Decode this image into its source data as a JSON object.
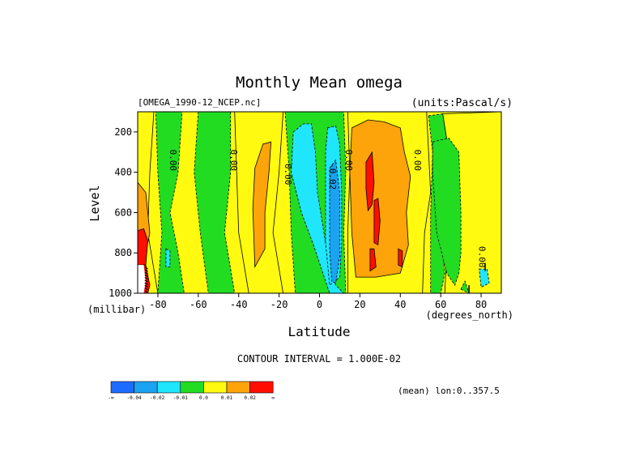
{
  "chart_data": {
    "type": "contour",
    "title": "Monthly Mean omega",
    "dataset": "[OMEGA_1990-12_NCEP.nc]",
    "units": "(units:Pascal/s)",
    "xlabel": "Latitude",
    "ylabel": "Level",
    "xunits": "(degrees_north)",
    "yunits": "(millibar)",
    "xlim": [
      -90,
      90
    ],
    "ylim": [
      1000,
      100
    ],
    "xticks": [
      "-80",
      "-60",
      "-40",
      "-20",
      "0",
      "20",
      "40",
      "60",
      "80"
    ],
    "yticks": [
      "200",
      "400",
      "600",
      "800",
      "1000"
    ],
    "contour_interval": "CONTOUR INTERVAL = 1.000E-02",
    "averaging": "(mean) lon:0..357.5",
    "contour_labels": [
      {
        "text": "0.00",
        "lat": -74,
        "lev": 340
      },
      {
        "text": "0.00",
        "lat": -44,
        "lev": 340
      },
      {
        "text": "0.00",
        "lat": -17,
        "lev": 410
      },
      {
        "text": "0.00",
        "lat": 13,
        "lev": 340
      },
      {
        "text": "-0.02",
        "lat": 5,
        "lev": 420
      },
      {
        "text": "0.00",
        "lat": 47,
        "lev": 340
      },
      {
        "text": "0.00",
        "lat": 79,
        "lev": 820
      }
    ],
    "regions": [
      {
        "level": 0.005,
        "points": [
          [
            -90,
            100
          ],
          [
            -82,
            100
          ],
          [
            -84,
            400
          ],
          [
            -85,
            700
          ],
          [
            -80,
            1000
          ],
          [
            -90,
            1000
          ]
        ]
      },
      {
        "level": 0.015,
        "points": [
          [
            -90,
            450
          ],
          [
            -86,
            500
          ],
          [
            -84,
            700
          ],
          [
            -86,
            800
          ],
          [
            -90,
            850
          ]
        ]
      },
      {
        "level": 0.025,
        "points": [
          [
            -90,
            690
          ],
          [
            -87,
            680
          ],
          [
            -85,
            740
          ],
          [
            -86,
            860
          ],
          [
            -90,
            860
          ]
        ]
      },
      {
        "level": 0.025,
        "points": [
          [
            -88,
            860
          ],
          [
            -86,
            860
          ],
          [
            -84,
            960
          ],
          [
            -85,
            1000
          ],
          [
            -88,
            1000
          ]
        ]
      },
      {
        "level": -0.005,
        "points": [
          [
            -81,
            100
          ],
          [
            -68,
            100
          ],
          [
            -70,
            400
          ],
          [
            -74,
            600
          ],
          [
            -70,
            800
          ],
          [
            -67,
            1000
          ],
          [
            -80,
            1000
          ],
          [
            -78,
            700
          ],
          [
            -80,
            400
          ]
        ]
      },
      {
        "level": -0.015,
        "points": [
          [
            -76,
            780
          ],
          [
            -74,
            790
          ],
          [
            -74,
            870
          ],
          [
            -76,
            870
          ]
        ]
      },
      {
        "level": -0.005,
        "points": [
          [
            -60,
            100
          ],
          [
            -44,
            100
          ],
          [
            -44,
            400
          ],
          [
            -47,
            700
          ],
          [
            -42,
            1000
          ],
          [
            -55,
            1000
          ],
          [
            -59,
            700
          ],
          [
            -62,
            400
          ]
        ]
      },
      {
        "level": 0.005,
        "points": [
          [
            -42,
            100
          ],
          [
            -18,
            100
          ],
          [
            -20,
            400
          ],
          [
            -23,
            700
          ],
          [
            -18,
            1000
          ],
          [
            -35,
            1000
          ],
          [
            -40,
            700
          ],
          [
            -41,
            400
          ]
        ]
      },
      {
        "level": 0.015,
        "points": [
          [
            -33,
            580
          ],
          [
            -32,
            380
          ],
          [
            -28,
            260
          ],
          [
            -24,
            250
          ],
          [
            -25,
            400
          ],
          [
            -27,
            600
          ],
          [
            -27,
            780
          ],
          [
            -32,
            870
          ]
        ]
      },
      {
        "level": -0.005,
        "points": [
          [
            -17,
            100
          ],
          [
            12,
            100
          ],
          [
            13,
            400
          ],
          [
            12,
            700
          ],
          [
            13,
            1000
          ],
          [
            -12,
            1000
          ],
          [
            -14,
            700
          ],
          [
            -15,
            400
          ]
        ]
      },
      {
        "level": -0.015,
        "points": [
          [
            -13,
            200
          ],
          [
            -8,
            160
          ],
          [
            -4,
            160
          ],
          [
            -2,
            300
          ],
          [
            -1,
            500
          ],
          [
            3,
            750
          ],
          [
            8,
            960
          ],
          [
            12,
            1000
          ],
          [
            5,
            1000
          ],
          [
            -3,
            760
          ],
          [
            -9,
            600
          ],
          [
            -14,
            400
          ]
        ]
      },
      {
        "level": -0.015,
        "points": [
          [
            4,
            180
          ],
          [
            8,
            170
          ],
          [
            10,
            260
          ],
          [
            11,
            500
          ],
          [
            11,
            750
          ],
          [
            10,
            920
          ],
          [
            5,
            960
          ],
          [
            3,
            750
          ],
          [
            3,
            500
          ],
          [
            3,
            300
          ]
        ]
      },
      {
        "level": -0.025,
        "points": [
          [
            5,
            380
          ],
          [
            8,
            340
          ],
          [
            10,
            500
          ],
          [
            10,
            820
          ],
          [
            8,
            950
          ],
          [
            6,
            940
          ],
          [
            5,
            780
          ],
          [
            5,
            560
          ]
        ]
      },
      {
        "level": 0.005,
        "points": [
          [
            14,
            100
          ],
          [
            53,
            100
          ],
          [
            54,
            300
          ],
          [
            55,
            500
          ],
          [
            52,
            700
          ],
          [
            51,
            1000
          ],
          [
            14,
            1000
          ],
          [
            14,
            700
          ],
          [
            15,
            400
          ]
        ]
      },
      {
        "level": 0.015,
        "points": [
          [
            16,
            180
          ],
          [
            24,
            140
          ],
          [
            32,
            150
          ],
          [
            40,
            180
          ],
          [
            42,
            300
          ],
          [
            45,
            420
          ],
          [
            43,
            600
          ],
          [
            44,
            760
          ],
          [
            40,
            900
          ],
          [
            28,
            920
          ],
          [
            18,
            920
          ],
          [
            16,
            700
          ],
          [
            15,
            400
          ]
        ]
      },
      {
        "level": 0.025,
        "points": [
          [
            23,
            350
          ],
          [
            26,
            300
          ],
          [
            27,
            450
          ],
          [
            26,
            560
          ],
          [
            24,
            590
          ],
          [
            23,
            480
          ]
        ]
      },
      {
        "level": 0.025,
        "points": [
          [
            27,
            540
          ],
          [
            29,
            530
          ],
          [
            30,
            640
          ],
          [
            29,
            760
          ],
          [
            27,
            750
          ]
        ]
      },
      {
        "level": 0.025,
        "points": [
          [
            25,
            780
          ],
          [
            27,
            780
          ],
          [
            28,
            870
          ],
          [
            25,
            890
          ]
        ]
      },
      {
        "level": 0.025,
        "points": [
          [
            39,
            780
          ],
          [
            41,
            790
          ],
          [
            41,
            870
          ],
          [
            39,
            860
          ]
        ]
      },
      {
        "level": -0.005,
        "points": [
          [
            54,
            120
          ],
          [
            61,
            110
          ],
          [
            64,
            300
          ],
          [
            63,
            500
          ],
          [
            60,
            700
          ],
          [
            62,
            900
          ],
          [
            60,
            1000
          ],
          [
            55,
            1000
          ],
          [
            55,
            600
          ],
          [
            56,
            300
          ]
        ]
      },
      {
        "level": 0.005,
        "points": [
          [
            61,
            110
          ],
          [
            90,
            100
          ],
          [
            90,
            1000
          ],
          [
            62,
            1000
          ],
          [
            63,
            800
          ],
          [
            61,
            500
          ],
          [
            64,
            300
          ]
        ]
      },
      {
        "level": -0.005,
        "points": [
          [
            56,
            250
          ],
          [
            64,
            230
          ],
          [
            69,
            300
          ],
          [
            70,
            600
          ],
          [
            70,
            800
          ],
          [
            69,
            900
          ],
          [
            67,
            960
          ],
          [
            63,
            900
          ],
          [
            58,
            700
          ],
          [
            56,
            400
          ]
        ]
      },
      {
        "level": -0.015,
        "points": [
          [
            79,
            880
          ],
          [
            83,
            880
          ],
          [
            84,
            950
          ],
          [
            80,
            970
          ]
        ]
      },
      {
        "level": -0.005,
        "points": [
          [
            70,
            980
          ],
          [
            72,
            940
          ],
          [
            74,
            1000
          ]
        ]
      }
    ],
    "colorbar": {
      "labels": [
        "-∞",
        "-0.04",
        "-0.02",
        "-0.01",
        "0.0",
        "0.01",
        "0.02",
        "∞"
      ],
      "colors": [
        "#1e6cff",
        "#1ba2f0",
        "#20e6fc",
        "#22dc22",
        "#fffa10",
        "#fca40a",
        "#ff0f00"
      ]
    },
    "colors": {
      "land": "#ffffff",
      "contour_line": "#000000"
    }
  }
}
